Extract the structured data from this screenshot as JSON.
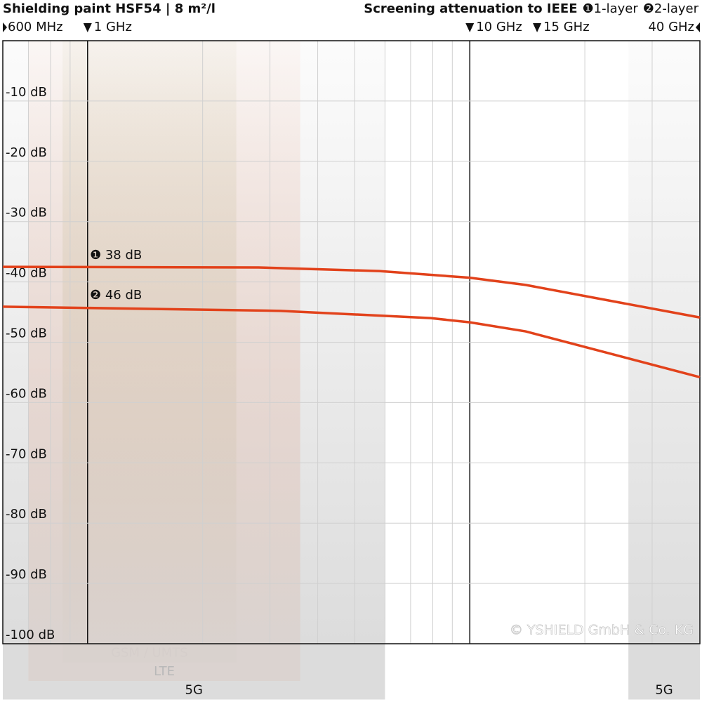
{
  "chart_data": {
    "type": "line",
    "title": "Shielding paint HSF54 | 8 m²/l",
    "subtitle": "Screening attenuation to IEEE",
    "x_scale": "log",
    "xlim": [
      0.6,
      40
    ],
    "xticks": [
      {
        "value": 0.6,
        "label": "600 MHz"
      },
      {
        "value": 1,
        "label": "1 GHz"
      },
      {
        "value": 10,
        "label": "10 GHz"
      },
      {
        "value": 15,
        "label": "15 GHz"
      },
      {
        "value": 40,
        "label": "40 GHz"
      }
    ],
    "minor_grid": true,
    "ylim": [
      0,
      -100
    ],
    "yticks": [
      {
        "value": -10,
        "label": "-10 dB"
      },
      {
        "value": -20,
        "label": "-20 dB"
      },
      {
        "value": -30,
        "label": "-30 dB"
      },
      {
        "value": -40,
        "label": "-40 dB"
      },
      {
        "value": -50,
        "label": "-50 dB"
      },
      {
        "value": -60,
        "label": "-60 dB"
      },
      {
        "value": -70,
        "label": "-70 dB"
      },
      {
        "value": -80,
        "label": "-80 dB"
      },
      {
        "value": -90,
        "label": "-90 dB"
      },
      {
        "value": -100,
        "label": "-100 dB"
      }
    ],
    "grid": true,
    "series": [
      {
        "name": "❶1-layer",
        "color": "#e2421b",
        "annotation": "❶ 38 dB",
        "x": [
          0.6,
          2.8,
          5.8,
          10,
          14,
          40
        ],
        "values": [
          -37.5,
          -37.6,
          -38.2,
          -39.3,
          -40.5,
          -45.9
        ]
      },
      {
        "name": "❷2-layer",
        "color": "#e2421b",
        "annotation": "❷ 46 dB",
        "x": [
          0.6,
          3.2,
          7.9,
          10,
          14,
          40
        ],
        "values": [
          -44.1,
          -44.8,
          -46.0,
          -46.7,
          -48.2,
          -55.8
        ]
      }
    ],
    "bands": [
      {
        "label": "GSM / UMTS",
        "from": 0.86,
        "to": 2.45,
        "color": "#bfc292"
      },
      {
        "label": "LTE",
        "from": 0.7,
        "to": 3.6,
        "color": "#f2b8a0"
      },
      {
        "label": "5G",
        "from": 0.6,
        "to": 6,
        "color": "#d6d6d6"
      },
      {
        "label": "5G",
        "from": 26,
        "to": 40,
        "color": "#d6d6d6"
      }
    ],
    "watermark": "© YSHIELD GmbH & Co. KG"
  }
}
